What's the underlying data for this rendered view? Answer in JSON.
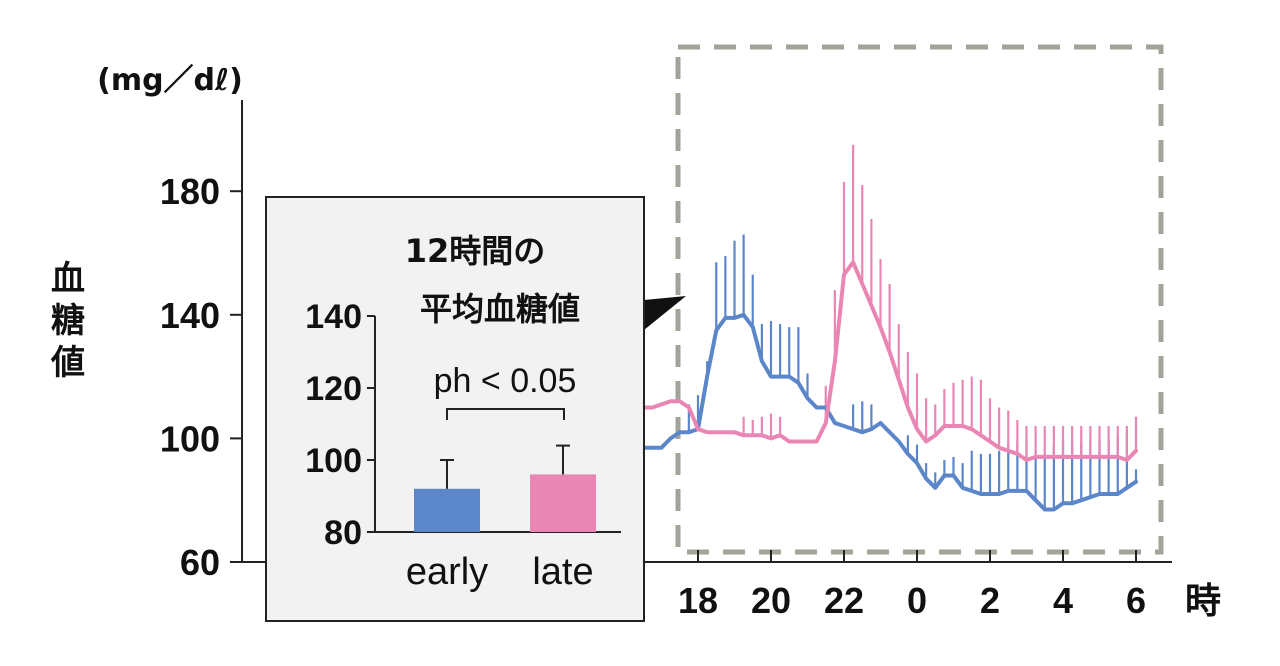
{
  "colors": {
    "early": "#5b86c9",
    "late": "#ea86b3",
    "inset_bg": "#f2f2f2",
    "dashed_box": "#a3a39a",
    "axis": "#222222"
  },
  "chart_data": [
    {
      "type": "line",
      "ylabel_unit": "(mg／dℓ)",
      "ylabel_chars": [
        "血",
        "糖",
        "値"
      ],
      "xlabel": "時",
      "ylim": [
        60,
        200
      ],
      "yticks": [
        60,
        100,
        140,
        180
      ],
      "xtick_values": [
        18,
        20,
        22,
        0,
        2,
        4,
        6
      ],
      "xtick_labels": [
        "18",
        "20",
        "22",
        "0",
        "2",
        "4",
        "6"
      ],
      "x_unit": "hours (continuous from 15:00 to 06:00 next day)",
      "series": [
        {
          "key": "early",
          "t": [
            15.25,
            15.5,
            15.75,
            16,
            16.25,
            16.5,
            16.75,
            17,
            17.25,
            17.5,
            17.75,
            18,
            18.25,
            18.5,
            18.75,
            19,
            19.25,
            19.5,
            19.75,
            20,
            20.25,
            20.5,
            20.75,
            21,
            21.25,
            21.5,
            21.75,
            22,
            22.25,
            22.5,
            22.75,
            23,
            23.25,
            23.5,
            23.75,
            24,
            24.25,
            24.5,
            24.75,
            25,
            25.25,
            25.5,
            25.75,
            26,
            26.25,
            26.5,
            26.75,
            27,
            27.25,
            27.5,
            27.75,
            28,
            28.25,
            28.5,
            28.75,
            29,
            29.25,
            29.5,
            29.75,
            30
          ],
          "y": [
            97,
            97,
            97,
            97,
            97,
            97,
            97,
            97,
            100,
            102,
            102,
            103,
            120,
            135,
            139,
            139,
            140,
            136,
            125,
            120,
            120,
            120,
            118,
            113,
            110,
            110,
            105,
            104,
            103,
            102,
            103,
            105,
            102,
            99,
            95,
            92,
            87,
            84,
            88,
            88,
            84,
            83,
            82,
            82,
            82,
            83,
            83,
            83,
            80,
            77,
            77,
            79,
            79,
            80,
            81,
            82,
            82,
            82,
            84,
            86
          ],
          "err": [
            0,
            0,
            0,
            0,
            0,
            0,
            0,
            0,
            0,
            0,
            9,
            11,
            5,
            22,
            20,
            25,
            26,
            17,
            12,
            18,
            17,
            16,
            18,
            8,
            0,
            0,
            0,
            0,
            8,
            10,
            8,
            0,
            0,
            0,
            6,
            6,
            5,
            5,
            5,
            6,
            8,
            13,
            13,
            13,
            14,
            15,
            16,
            17,
            16,
            18,
            21,
            20,
            21,
            19,
            18,
            18,
            18,
            19,
            18,
            4
          ],
          "err_dir": "up"
        },
        {
          "key": "late",
          "t": [
            15.25,
            15.5,
            15.75,
            16,
            16.25,
            16.5,
            16.75,
            17,
            17.25,
            17.5,
            17.75,
            18,
            18.25,
            18.5,
            18.75,
            19,
            19.25,
            19.5,
            19.75,
            20,
            20.25,
            20.5,
            20.75,
            21,
            21.25,
            21.5,
            21.75,
            22,
            22.25,
            22.5,
            22.75,
            23,
            23.25,
            23.5,
            23.75,
            24,
            24.25,
            24.5,
            24.75,
            25,
            25.25,
            25.5,
            25.75,
            26,
            26.25,
            26.5,
            26.75,
            27,
            27.25,
            27.5,
            27.75,
            28,
            28.25,
            28.5,
            28.75,
            29,
            29.25,
            29.5,
            29.75,
            30
          ],
          "y": [
            110,
            110,
            110,
            110,
            110,
            110,
            110,
            111,
            112,
            112,
            110,
            103,
            102,
            102,
            102,
            102,
            101,
            101,
            101,
            100,
            101,
            99,
            99,
            99,
            99,
            105,
            125,
            153,
            157,
            150,
            143,
            136,
            128,
            119,
            110,
            103,
            99,
            101,
            104,
            104,
            104,
            103,
            101,
            99,
            97,
            96,
            95,
            93,
            94,
            94,
            94,
            94,
            94,
            94,
            94,
            94,
            94,
            94,
            93,
            96
          ],
          "err": [
            0,
            0,
            0,
            0,
            0,
            0,
            0,
            0,
            0,
            0,
            0,
            0,
            0,
            0,
            0,
            0,
            6,
            5,
            6,
            8,
            6,
            0,
            0,
            0,
            0,
            12,
            23,
            30,
            38,
            32,
            28,
            22,
            22,
            18,
            18,
            18,
            14,
            10,
            12,
            14,
            15,
            17,
            18,
            14,
            13,
            13,
            11,
            11,
            10,
            10,
            10,
            10,
            10,
            10,
            10,
            10,
            10,
            10,
            11,
            11
          ],
          "err_dir": "up"
        }
      ]
    },
    {
      "type": "bar",
      "title_lines": [
        "12時間の",
        "平均血糖値"
      ],
      "categories": [
        "early",
        "late"
      ],
      "values": [
        92,
        96
      ],
      "errors": [
        8,
        8
      ],
      "ylim": [
        80,
        140
      ],
      "yticks": [
        80,
        100,
        120,
        140
      ],
      "annotation": "ph < 0.05"
    }
  ]
}
